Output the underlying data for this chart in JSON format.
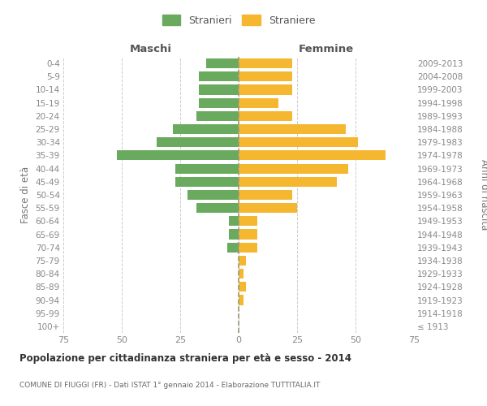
{
  "age_groups": [
    "100+",
    "95-99",
    "90-94",
    "85-89",
    "80-84",
    "75-79",
    "70-74",
    "65-69",
    "60-64",
    "55-59",
    "50-54",
    "45-49",
    "40-44",
    "35-39",
    "30-34",
    "25-29",
    "20-24",
    "15-19",
    "10-14",
    "5-9",
    "0-4"
  ],
  "birth_years": [
    "≤ 1913",
    "1914-1918",
    "1919-1923",
    "1924-1928",
    "1929-1933",
    "1934-1938",
    "1939-1943",
    "1944-1948",
    "1949-1953",
    "1954-1958",
    "1959-1963",
    "1964-1968",
    "1969-1973",
    "1974-1978",
    "1979-1983",
    "1984-1988",
    "1989-1993",
    "1994-1998",
    "1999-2003",
    "2004-2008",
    "2009-2013"
  ],
  "males": [
    0,
    0,
    0,
    0,
    0,
    0,
    5,
    4,
    4,
    18,
    22,
    27,
    27,
    52,
    35,
    28,
    18,
    17,
    17,
    17,
    14
  ],
  "females": [
    0,
    0,
    2,
    3,
    2,
    3,
    8,
    8,
    8,
    25,
    23,
    42,
    47,
    63,
    51,
    46,
    23,
    17,
    23,
    23,
    23
  ],
  "male_color": "#6aaa5e",
  "female_color": "#f5b730",
  "xlim": 75,
  "title": "Popolazione per cittadinanza straniera per età e sesso - 2014",
  "subtitle": "COMUNE DI FIUGGI (FR) - Dati ISTAT 1° gennaio 2014 - Elaborazione TUTTITALIA.IT",
  "ylabel_left": "Fasce di età",
  "ylabel_right": "Anni di nascita",
  "xlabel_left": "Maschi",
  "xlabel_right": "Femmine",
  "legend_male": "Stranieri",
  "legend_female": "Straniere",
  "grid_color": "#cccccc",
  "background_color": "#ffffff",
  "tick_color": "#888888",
  "center_line_color": "#999977"
}
